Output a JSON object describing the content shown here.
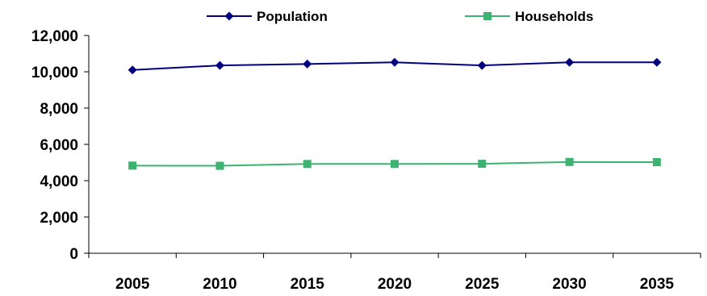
{
  "chart_data": {
    "type": "line",
    "title": "",
    "xlabel": "",
    "ylabel": "",
    "x": [
      "2005",
      "2010",
      "2015",
      "2020",
      "2025",
      "2030",
      "2035"
    ],
    "ylim": [
      0,
      12000
    ],
    "y_ticks": [
      "0",
      "2,000",
      "4,000",
      "6,000",
      "8,000",
      "10,000",
      "12,000"
    ],
    "y_tick_values": [
      0,
      2000,
      4000,
      6000,
      8000,
      10000,
      12000
    ],
    "grid": false,
    "legend_position": "top",
    "series": [
      {
        "name": "Population",
        "values": [
          10100,
          10350,
          10430,
          10520,
          10350,
          10520,
          10520
        ],
        "color": "#000080",
        "marker": "diamond"
      },
      {
        "name": "Households",
        "values": [
          4830,
          4820,
          4920,
          4920,
          4930,
          5030,
          5020
        ],
        "color": "#3CB371",
        "marker": "square"
      }
    ]
  }
}
